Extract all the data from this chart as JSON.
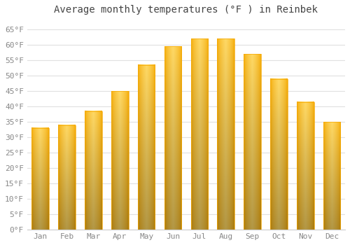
{
  "title": "Average monthly temperatures (°F ) in Reinbek",
  "months": [
    "Jan",
    "Feb",
    "Mar",
    "Apr",
    "May",
    "Jun",
    "Jul",
    "Aug",
    "Sep",
    "Oct",
    "Nov",
    "Dec"
  ],
  "values": [
    33,
    34,
    38.5,
    45,
    53.5,
    59.5,
    62,
    62,
    57,
    49,
    41.5,
    35
  ],
  "bar_color_center": "#FFD966",
  "bar_color_edge": "#F5A800",
  "bar_color_bottom": "#E08000",
  "ylim": [
    0,
    68
  ],
  "yticks": [
    0,
    5,
    10,
    15,
    20,
    25,
    30,
    35,
    40,
    45,
    50,
    55,
    60,
    65
  ],
  "ytick_labels": [
    "0°F",
    "5°F",
    "10°F",
    "15°F",
    "20°F",
    "25°F",
    "30°F",
    "35°F",
    "40°F",
    "45°F",
    "50°F",
    "55°F",
    "60°F",
    "65°F"
  ],
  "background_color": "#ffffff",
  "grid_color": "#e0e0e0",
  "title_fontsize": 10,
  "tick_fontsize": 8,
  "bar_width": 0.65
}
